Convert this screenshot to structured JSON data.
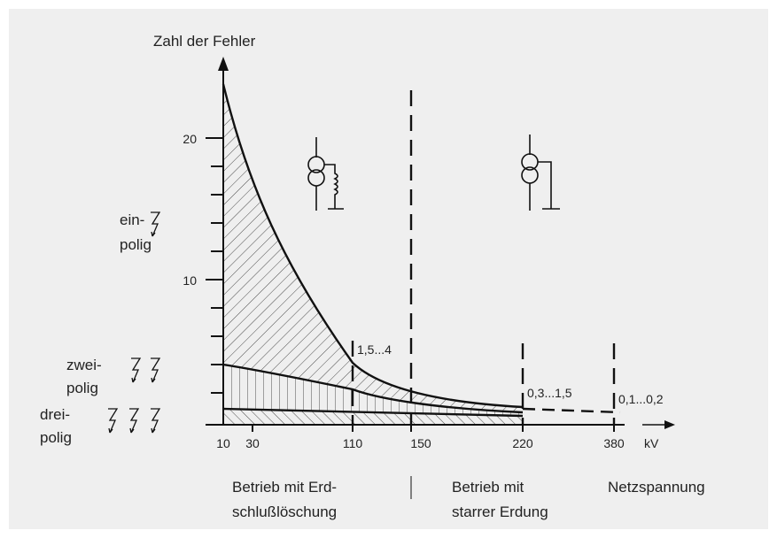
{
  "axis": {
    "title": "Zahl der Fehler",
    "yticks": [
      "10",
      "20"
    ],
    "xticks": [
      "10",
      "30",
      "110",
      "150",
      "220",
      "380"
    ],
    "unit": "kV"
  },
  "fault_types": [
    {
      "lines": [
        "ein-",
        "polig"
      ]
    },
    {
      "lines": [
        "zwei-",
        "polig"
      ]
    },
    {
      "lines": [
        "drei-",
        "polig"
      ]
    }
  ],
  "annotations": [
    "1,5...4",
    "0,3...1,5",
    "0,1...0,2"
  ],
  "footer": {
    "left": [
      "Betrieb mit Erd-",
      "schlußlöschung"
    ],
    "middle": [
      "Betrieb mit",
      "starrer Erdung"
    ],
    "right": "Netzspannung"
  }
}
